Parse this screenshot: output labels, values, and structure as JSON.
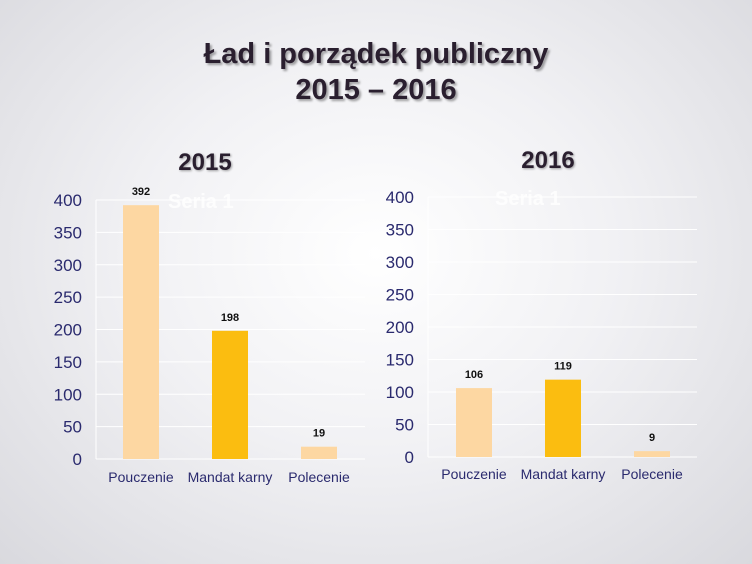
{
  "slide": {
    "title_line1": "Ład i porządek publiczny",
    "title_line2": "2015 – 2016"
  },
  "colors": {
    "light_bar": "#fdd7a2",
    "mid_bar": "#fbbd10",
    "grid": "#ffffff",
    "axis_text": "#2a2a6e"
  },
  "chart_data": [
    {
      "type": "bar",
      "title": "2015",
      "series_name": "Seria 1",
      "categories": [
        "Pouczenie",
        "Mandat karny",
        "Polecenie"
      ],
      "values": [
        392,
        198,
        19
      ],
      "ylim": [
        0,
        400
      ],
      "yticks": [
        0,
        50,
        100,
        150,
        200,
        250,
        300,
        350,
        400
      ],
      "xlabel": "",
      "ylabel": ""
    },
    {
      "type": "bar",
      "title": "2016",
      "series_name": "Seria 1",
      "categories": [
        "Pouczenie",
        "Mandat karny",
        "Polecenie"
      ],
      "values": [
        106,
        119,
        9
      ],
      "ylim": [
        0,
        400
      ],
      "yticks": [
        0,
        50,
        100,
        150,
        200,
        250,
        300,
        350,
        400
      ],
      "xlabel": "",
      "ylabel": ""
    }
  ]
}
